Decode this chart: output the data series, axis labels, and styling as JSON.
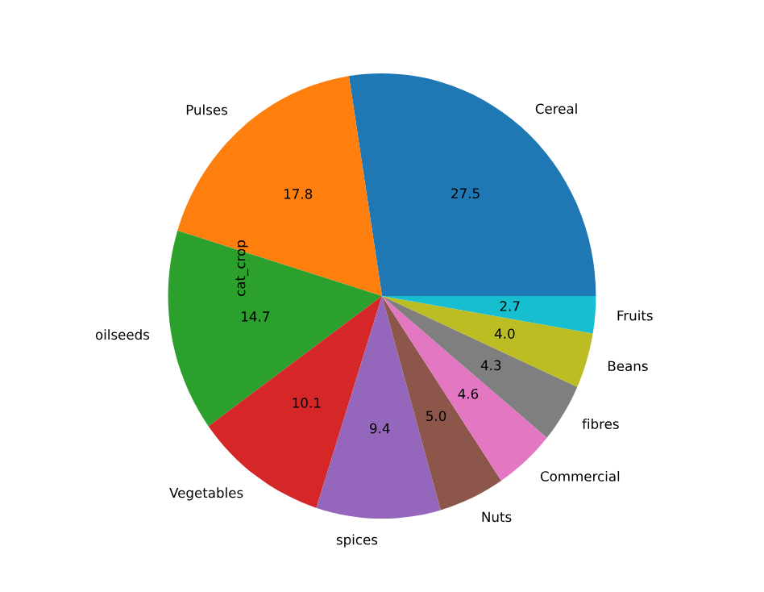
{
  "chart_data": {
    "type": "pie",
    "ylabel": "cat_crop",
    "categories": [
      "Cereal",
      "Pulses",
      "oilseeds",
      "Vegetables",
      "spices",
      "Nuts",
      "Commercial",
      "fibres",
      "Beans",
      "Fruits"
    ],
    "values": [
      27.5,
      17.8,
      14.7,
      10.1,
      9.4,
      5.0,
      4.6,
      4.3,
      4.0,
      2.7
    ],
    "colors": [
      "#1f77b4",
      "#ff7f0e",
      "#2ca02c",
      "#d62728",
      "#9467bd",
      "#8c564b",
      "#e377c2",
      "#7f7f7f",
      "#bcbd22",
      "#17becf"
    ],
    "value_labels": [
      "27.5",
      "17.8",
      "14.7",
      "10.1",
      "9.4",
      "5.0",
      "4.6",
      "4.3",
      "4.0",
      "2.7"
    ]
  }
}
